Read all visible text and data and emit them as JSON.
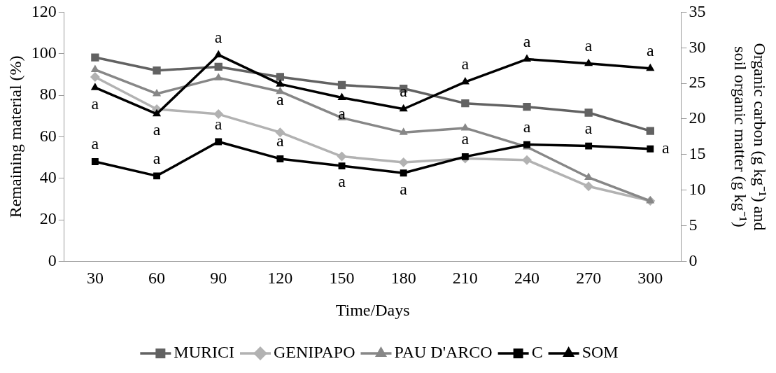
{
  "chart_data": {
    "type": "line",
    "xlabel": "Time/Days",
    "ylabel": "Remaining material (%)",
    "y2label": "Organic carbon (g kg⁻¹) and soil organic matter (g kg⁻¹)",
    "categories": [
      "30",
      "60",
      "90",
      "120",
      "150",
      "180",
      "210",
      "240",
      "270",
      "300"
    ],
    "series": [
      {
        "name": "MURICI",
        "color": "#626262",
        "marker": "square",
        "values": [
          98.2,
          91.9,
          93.7,
          88.8,
          84.9,
          83.2,
          76.1,
          74.4,
          71.6,
          62.8
        ]
      },
      {
        "name": "GENIPAPO",
        "color": "#b2b2b2",
        "marker": "diamond",
        "values": [
          88.8,
          73.3,
          70.9,
          62.1,
          50.5,
          47.7,
          49.5,
          48.8,
          36.1,
          29.1
        ]
      },
      {
        "name": "PAU D'ARCO",
        "color": "#878787",
        "marker": "triangle",
        "values": [
          92.3,
          80.7,
          88.4,
          81.8,
          69.1,
          62.1,
          64.2,
          55.1,
          40.4,
          29.1
        ]
      },
      {
        "name": "C",
        "color": "#000000",
        "marker": "square",
        "axis": "y2",
        "values": [
          14.0,
          12.0,
          16.8,
          14.4,
          13.4,
          12.4,
          14.7,
          16.4,
          16.2,
          15.8
        ],
        "value_labels": [
          "a",
          "a",
          "a",
          "a",
          "a",
          "a",
          "a",
          "a",
          "a",
          "a"
        ]
      },
      {
        "name": "SOM",
        "color": "#000000",
        "marker": "triangle",
        "axis": "y2",
        "values": [
          24.4,
          20.7,
          29.0,
          24.9,
          23.0,
          21.4,
          25.2,
          28.4,
          27.8,
          27.1
        ],
        "value_labels": [
          "a",
          "a",
          "a",
          "a",
          "a",
          "a",
          "a",
          "a",
          "a",
          "a"
        ]
      }
    ],
    "ylim": [
      0,
      120
    ],
    "yticks": [
      0,
      20,
      40,
      60,
      80,
      100,
      120
    ],
    "y2lim": [
      0,
      35
    ],
    "y2ticks": [
      0,
      5,
      10,
      15,
      20,
      25,
      30,
      35
    ],
    "grid": false,
    "legend": "bottom",
    "line_style": "solid"
  }
}
